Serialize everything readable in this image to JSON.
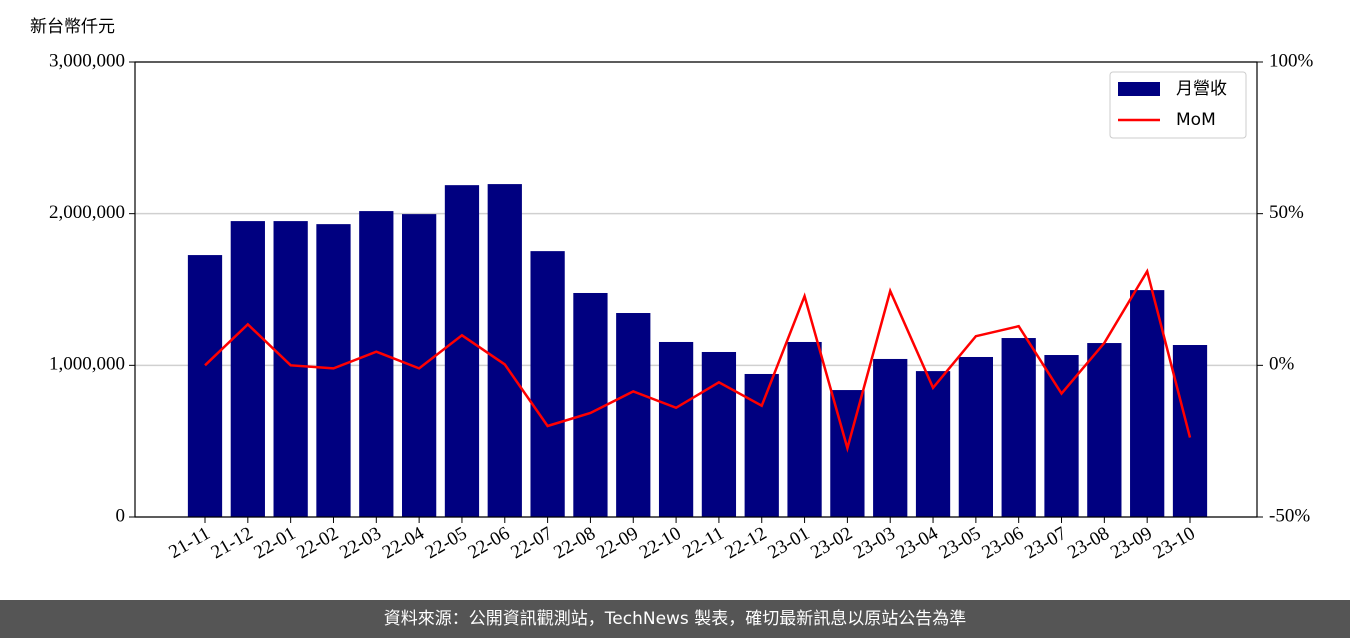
{
  "chart_data": {
    "type": "bar_line",
    "y_label": "新台幣仟元",
    "categories": [
      "21-11",
      "21-12",
      "22-01",
      "22-02",
      "22-03",
      "22-04",
      "22-05",
      "22-06",
      "22-07",
      "22-08",
      "22-09",
      "22-10",
      "22-11",
      "22-12",
      "23-01",
      "23-02",
      "23-03",
      "23-04",
      "23-05",
      "23-06",
      "23-07",
      "23-08",
      "23-09",
      "23-10"
    ],
    "series": [
      {
        "name": "月營收",
        "type": "bar",
        "color": "#000080",
        "values": [
          1727000,
          1951000,
          1951000,
          1931000,
          2017000,
          1997000,
          2188000,
          2195000,
          1753000,
          1477000,
          1345000,
          1154000,
          1088000,
          943000,
          1154000,
          837000,
          1042000,
          962000,
          1055000,
          1180000,
          1068000,
          1147000,
          1496000,
          1134000
        ]
      },
      {
        "name": "MoM",
        "type": "line",
        "axis": "y2",
        "color": "#ff0000",
        "values": [
          0,
          13.5,
          0,
          -1,
          4.5,
          -1,
          9.9,
          0.3,
          -20,
          -15.7,
          -8.6,
          -14,
          -5.6,
          -13.3,
          22.8,
          -27.3,
          24.5,
          -7.4,
          9.6,
          12.9,
          -9.3,
          7.4,
          31,
          -23.8
        ]
      }
    ],
    "ylim": [
      0,
      3000000
    ],
    "yticks": [
      0,
      {
        "value": 1000000,
        "label": "1,000,000"
      },
      {
        "value": 2000000,
        "label": "2,000,000"
      },
      {
        "value": 3000000,
        "label": "3,000,000"
      }
    ],
    "y2lim": [
      -50,
      100
    ],
    "y2ticks": [
      {
        "value": -50,
        "label": "-50%"
      },
      {
        "value": 0,
        "label": "0%"
      },
      {
        "value": 50,
        "label": "50%"
      },
      {
        "value": 100,
        "label": "100%"
      }
    ],
    "grid": true,
    "legend": "upper right"
  },
  "footer": "資料來源：公開資訊觀測站，TechNews 製表，確切最新訊息以原站公告為準"
}
